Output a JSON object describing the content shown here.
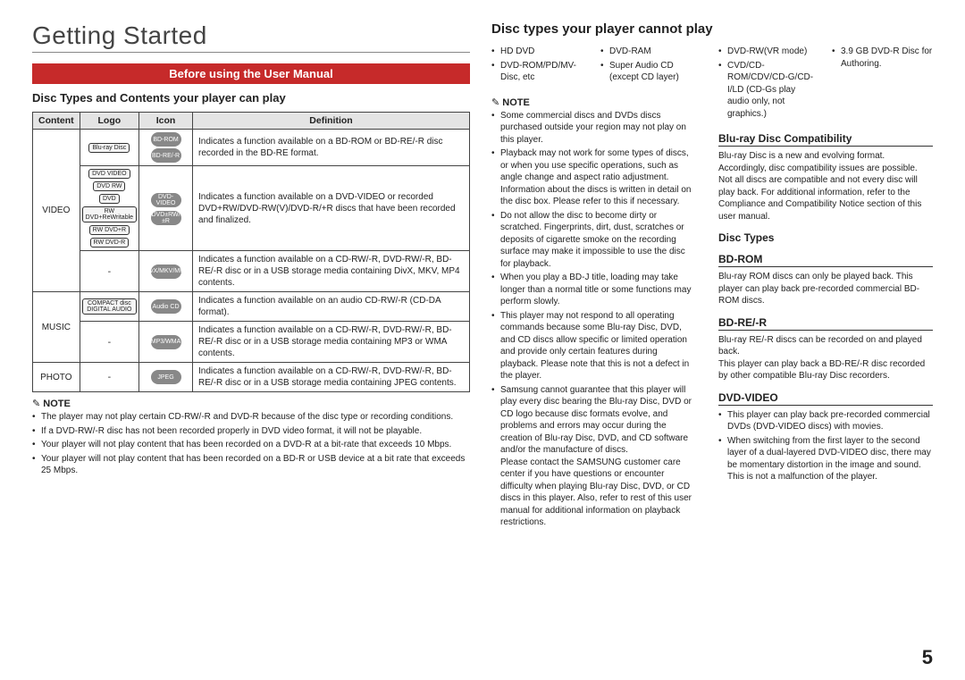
{
  "colors": {
    "accent": "#c62a2a",
    "text": "#222",
    "border": "#444",
    "header_bg": "#e4e4e4"
  },
  "page_number": "5",
  "left": {
    "main_title": "Getting Started",
    "section_bar": "Before using the User Manual",
    "subheading": "Disc Types and Contents your player can play",
    "table": {
      "headers": [
        "Content",
        "Logo",
        "Icon",
        "Definition"
      ],
      "rows": [
        {
          "content": "VIDEO",
          "logos": [
            "Blu-ray Disc"
          ],
          "icons": [
            "BD-ROM",
            "BD-RE/-R"
          ],
          "definition": "Indicates a function available on a BD-ROM or BD-RE/-R disc recorded in the BD-RE format."
        },
        {
          "logos": [
            "DVD VIDEO",
            "DVD RW",
            "DVD",
            "RW DVD+ReWritable",
            "RW DVD+R",
            "RW DVD-R"
          ],
          "icons": [
            "DVD-VIDEO",
            "DVD±RW/±R"
          ],
          "definition": "Indicates a function available on a DVD-VIDEO or recorded DVD+RW/DVD-RW(V)/DVD-R/+R discs that have been recorded and finalized."
        },
        {
          "logos": [
            "-"
          ],
          "icons": [
            "DivX/MKV/MP4"
          ],
          "definition": "Indicates a function available on a CD-RW/-R, DVD-RW/-R, BD-RE/-R disc or in a USB storage media containing DivX, MKV, MP4 contents."
        },
        {
          "content": "MUSIC",
          "logos": [
            "COMPACT disc DIGITAL AUDIO"
          ],
          "icons": [
            "Audio CD"
          ],
          "definition": "Indicates a function available on an audio CD-RW/-R (CD-DA format)."
        },
        {
          "logos": [
            "-"
          ],
          "icons": [
            "MP3/WMA"
          ],
          "definition": "Indicates a function available on a CD-RW/-R, DVD-RW/-R, BD-RE/-R disc or in a USB storage media containing MP3 or WMA contents."
        },
        {
          "content": "PHOTO",
          "logos": [
            "-"
          ],
          "icons": [
            "JPEG"
          ],
          "definition": "Indicates a function available on a CD-RW/-R, DVD-RW/-R, BD-RE/-R disc or in a USB storage media containing JPEG contents."
        }
      ]
    },
    "note_label": "NOTE",
    "notes": [
      "The player may not play certain CD-RW/-R and DVD-R because of the disc type or recording conditions.",
      "If a DVD-RW/-R disc has not been recorded properly in DVD video format, it will not be playable.",
      "Your player will not play content that has been recorded on a DVD-R at a bit-rate that exceeds 10 Mbps.",
      "Your player will not play content that has been recorded on a BD-R or USB device at a bit rate that exceeds 25 Mbps."
    ]
  },
  "mid": {
    "title": "Disc types your player cannot play",
    "cannot_cols": [
      [
        "HD DVD",
        "DVD-ROM/PD/MV-Disc, etc"
      ],
      [
        "DVD-RAM",
        "Super Audio CD (except CD layer)"
      ]
    ],
    "note_label": "NOTE",
    "notes": [
      "Some commercial discs and DVDs discs purchased outside your region may not play on this player.",
      "Playback may not work for some types of discs, or when you use specific operations, such as angle change and aspect ratio adjustment. Information about the discs is written in detail on the disc box. Please refer to this if necessary.",
      "Do not allow the disc to become dirty or scratched. Fingerprints, dirt, dust, scratches or deposits of cigarette smoke on the recording surface may make it impossible to use the disc for playback.",
      "When you play a BD-J title, loading may take longer than a normal title or some functions may perform slowly.",
      "This player may not respond to all operating commands because some Blu-ray Disc, DVD, and CD discs allow specific or limited operation and provide only certain features during playback. Please note that this is not a defect in the player.",
      "Samsung cannot guarantee that this player will play every disc bearing the Blu-ray Disc, DVD or CD logo because disc formats evolve, and problems and errors may occur during the creation of Blu-ray Disc, DVD, and CD software and/or the manufacture of discs.\nPlease contact the SAMSUNG customer care center if you have questions or encounter difficulty when playing Blu-ray Disc, DVD, or CD discs in this player. Also, refer to rest of this user manual for additional information on playback restrictions."
    ]
  },
  "right": {
    "cannot_cols": [
      [
        "DVD-RW(VR mode)",
        "CVD/CD-ROM/CDV/CD-G/CD-I/LD (CD-Gs play audio only, not graphics.)"
      ],
      [
        "3.9 GB DVD-R Disc for Authoring."
      ]
    ],
    "sections": [
      {
        "h": "Blu-ray Disc Compatibility",
        "underline": true,
        "p": "Blu-ray Disc is a new and evolving format. Accordingly, disc compatibility issues are possible. Not all discs are compatible and not every disc will play back. For additional information, refer to the Compliance and Compatibility Notice section of this user manual."
      },
      {
        "h": "Disc Types",
        "underline": false,
        "p": ""
      },
      {
        "h": "BD-ROM",
        "underline": true,
        "p": "Blu-ray ROM discs can only be played back. This player can play back pre-recorded commercial BD-ROM discs."
      },
      {
        "h": "BD-RE/-R",
        "underline": true,
        "p": "Blu-ray RE/-R discs can be recorded on and played back.\nThis player can play back a BD-RE/-R disc recorded by other compatible Blu-ray Disc recorders."
      },
      {
        "h": "DVD-VIDEO",
        "underline": true,
        "p": "",
        "bullets": [
          "This player can play back pre-recorded commercial DVDs (DVD-VIDEO discs) with movies.",
          "When switching from the first layer to the second layer of a dual-layered DVD-VIDEO disc, there may be momentary distortion in the image and sound. This is not a malfunction of the player."
        ]
      }
    ]
  }
}
